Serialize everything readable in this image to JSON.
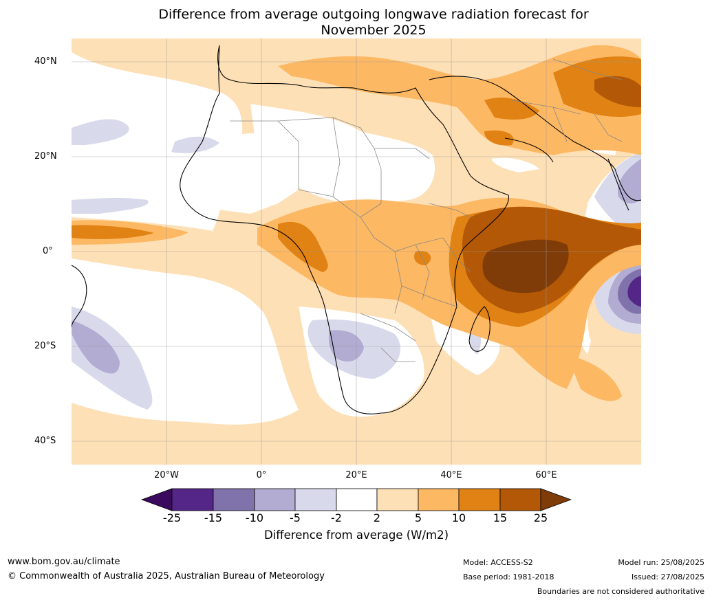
{
  "title_line1": "Difference from average outgoing longwave radiation forecast for",
  "title_line2": "November 2025",
  "lat_labels": [
    "40°N",
    "20°N",
    "0°",
    "20°S",
    "40°S"
  ],
  "lon_labels": [
    "20°W",
    "0°",
    "20°E",
    "40°E",
    "60°E"
  ],
  "colorbar": {
    "ticks": [
      "-25",
      "-15",
      "-10",
      "-5",
      "-2",
      "2",
      "5",
      "10",
      "15",
      "25"
    ],
    "colors": [
      "#3b0a5e",
      "#542688",
      "#8073ac",
      "#b2abd2",
      "#d8daeb",
      "#ffffff",
      "#fee0b6",
      "#fdb863",
      "#e08214",
      "#b35806",
      "#7f3b08"
    ],
    "title": "Difference from average (W/m2)"
  },
  "footer": {
    "website": "www.bom.gov.au/climate",
    "copyright": "© Commonwealth of Australia 2025, Australian Bureau of Meteorology",
    "model": "Model: ACCESS-S2",
    "base_period": "Base period: 1981-2018",
    "model_run": "Model run: 25/08/2025",
    "issued": "Issued: 27/08/2025",
    "disclaimer": "Boundaries are not considered authoritative"
  }
}
